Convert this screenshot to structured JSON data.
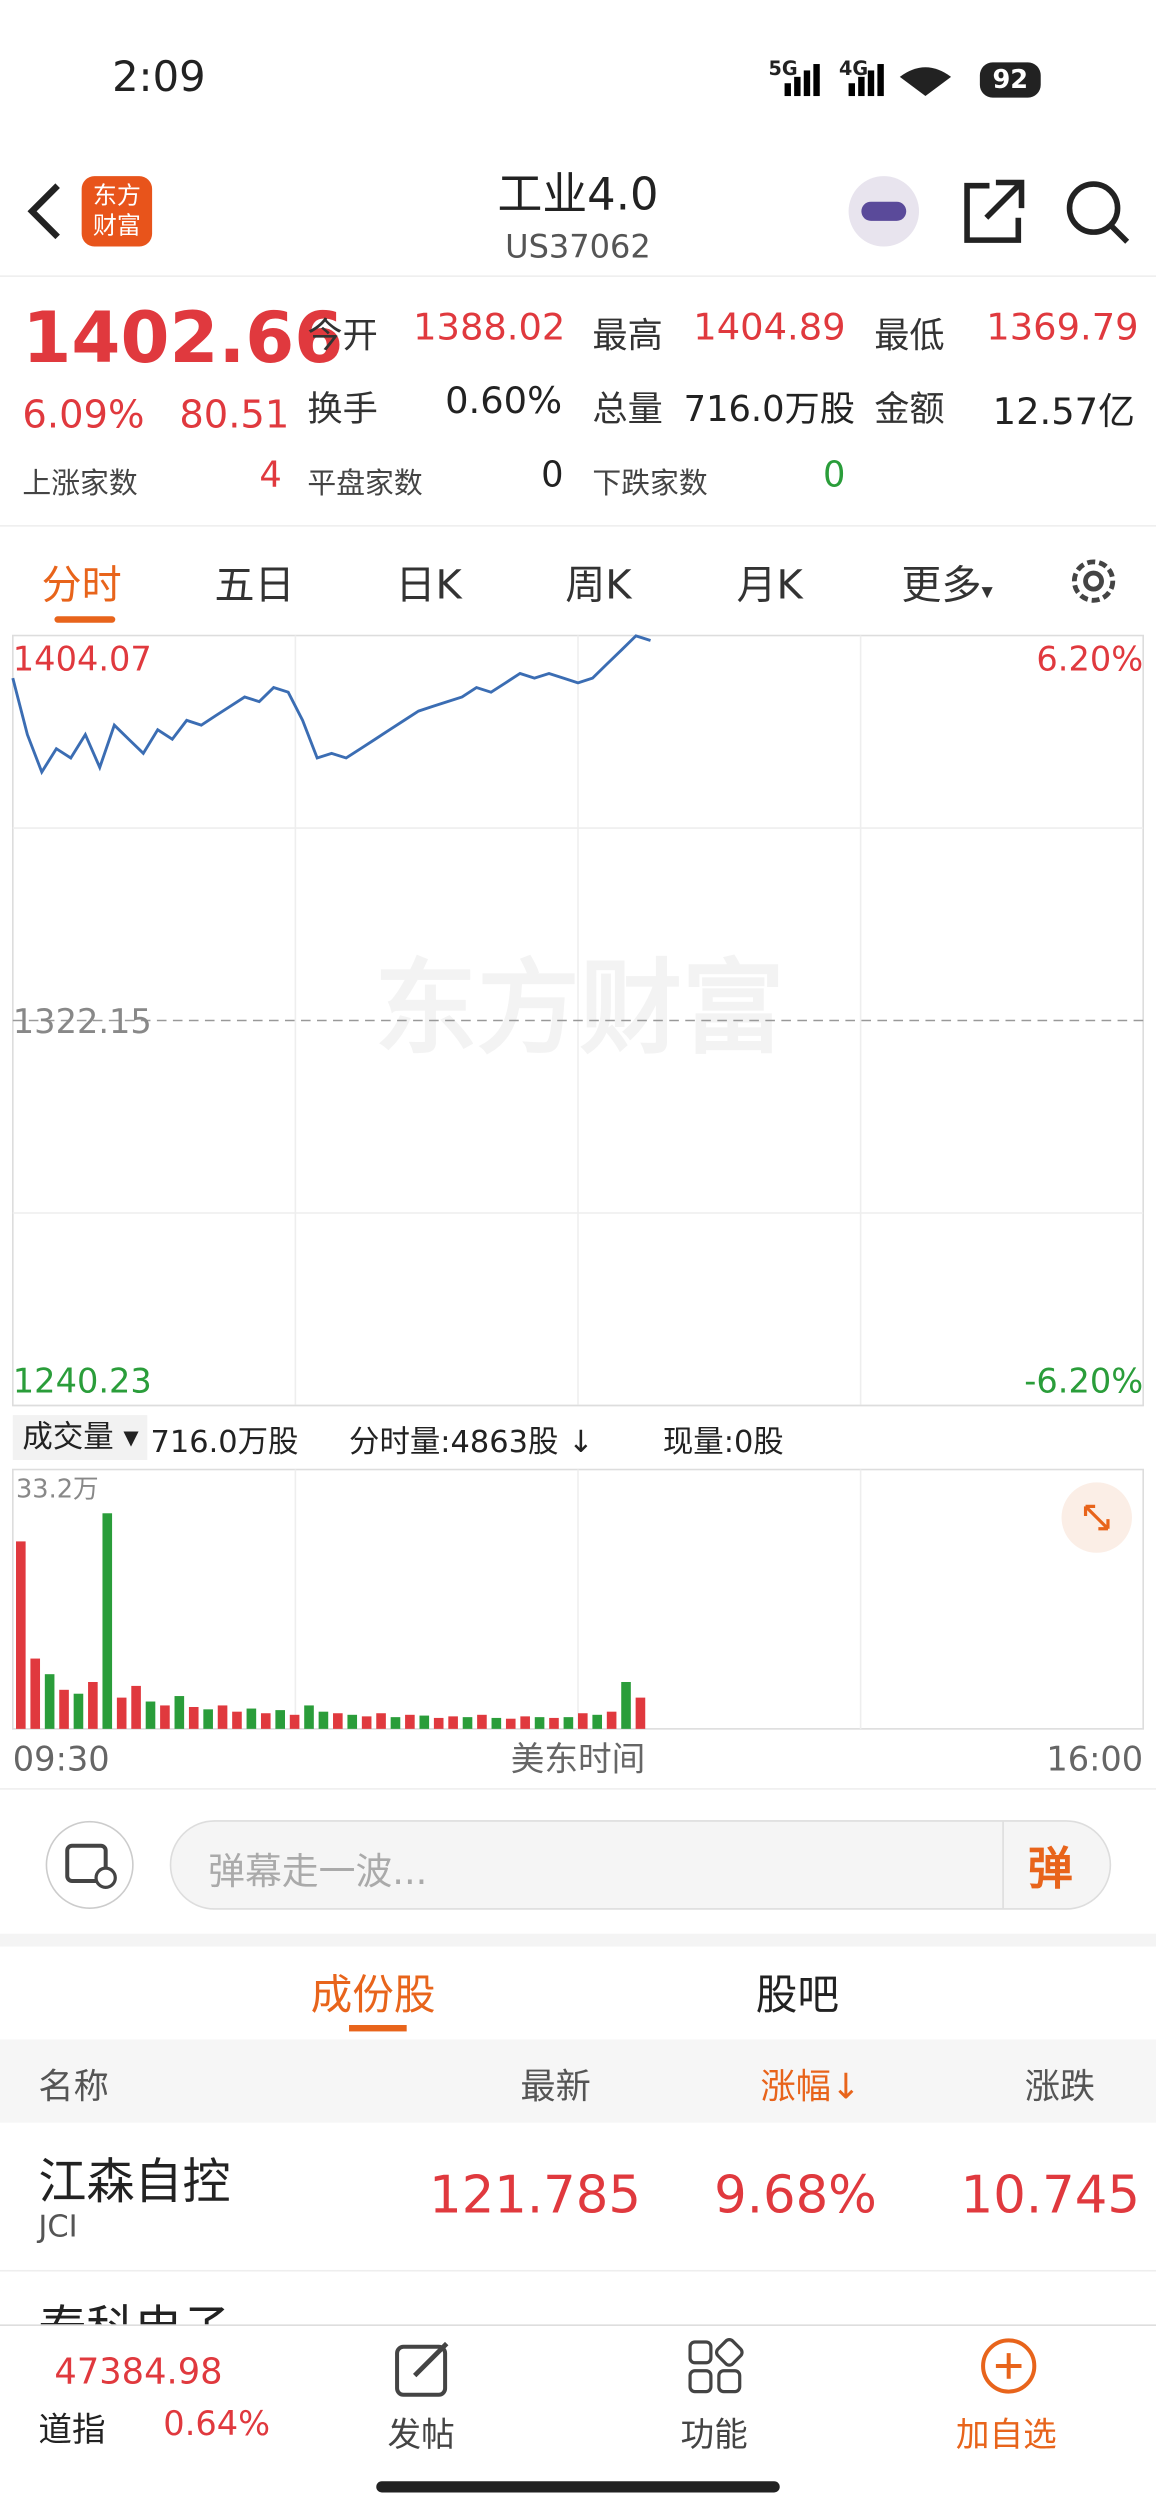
{
  "status": {
    "time": "2:09",
    "net1": "5G",
    "net2": "4G",
    "battery": "92"
  },
  "header": {
    "title": "工业4.0",
    "code": "US37062",
    "logo": "东方财富"
  },
  "quote": {
    "price": "1402.66",
    "pct": "6.09%",
    "chg": "80.51",
    "open_label": "今开",
    "open": "1388.02",
    "high_label": "最高",
    "high": "1404.89",
    "low_label": "最低",
    "low": "1369.79",
    "turnover_label": "换手",
    "turnover": "0.60%",
    "vol_label": "总量",
    "vol": "716.0万股",
    "amount_label": "金额",
    "amount": "12.57亿",
    "up_label": "上涨家数",
    "up": "4",
    "flat_label": "平盘家数",
    "flat": "0",
    "down_label": "下跌家数",
    "down": "0"
  },
  "tabs": [
    "分时",
    "五日",
    "日K",
    "周K",
    "月K",
    "更多"
  ],
  "chart_data": [
    {
      "type": "line",
      "color": "#3b6db3",
      "watermark": "东方财富",
      "ylim": [
        1240.23,
        1404.07
      ],
      "yticks": [
        1240.23,
        1322.15,
        1404.07
      ],
      "y2lim": [
        -6.2,
        6.2
      ],
      "y2ticks": [
        {
          "value": -6.2,
          "label": "-6.20%"
        },
        {
          "value": 6.2,
          "label": "6.20%"
        }
      ],
      "sessions": 390,
      "step": 5,
      "values": [
        1395,
        1383,
        1375,
        1380,
        1378,
        1383,
        1376,
        1385,
        1382,
        1379,
        1384,
        1382,
        1386,
        1385,
        1387,
        1389,
        1391,
        1390,
        1393,
        1392,
        1386,
        1378,
        1379,
        1378,
        1380,
        1382,
        1384,
        1386,
        1388,
        1389,
        1390,
        1391,
        1393,
        1392,
        1394,
        1396,
        1395,
        1396,
        1395,
        1394,
        1395,
        1398,
        1401,
        1404,
        1403
      ]
    },
    {
      "type": "bar",
      "ylim": [
        0,
        332000
      ],
      "yticks": [
        {
          "value": 332000,
          "label": "33.2万"
        }
      ],
      "up_color": "#e0393e",
      "down_color": "#2a9d3a",
      "values": [
        240000,
        90000,
        70000,
        50000,
        45000,
        60000,
        276000,
        40000,
        55000,
        35000,
        30000,
        42000,
        28000,
        25000,
        30000,
        22000,
        26000,
        20000,
        24000,
        18000,
        30000,
        22000,
        20000,
        18000,
        16000,
        20000,
        15000,
        18000,
        17000,
        14000,
        16000,
        15000,
        18000,
        14000,
        13000,
        16000,
        15000,
        14000,
        15000,
        20000,
        18000,
        22000,
        60000,
        40000
      ],
      "direction": [
        1,
        1,
        0,
        1,
        0,
        1,
        0,
        1,
        1,
        0,
        1,
        0,
        1,
        0,
        1,
        1,
        0,
        1,
        0,
        1,
        0,
        0,
        1,
        0,
        1,
        1,
        0,
        1,
        0,
        1,
        1,
        0,
        1,
        0,
        1,
        1,
        0,
        1,
        0,
        1,
        0,
        1,
        0,
        1
      ],
      "x_labels": [
        "09:30",
        "美东时间",
        "16:00"
      ]
    }
  ],
  "volume_info": {
    "label": "成交量",
    "total": "716.0万股",
    "minute": "分时量:4863股",
    "now": "现量:0股"
  },
  "danmu": {
    "placeholder": "弹幕走一波...",
    "button": "弹"
  },
  "section_tabs": [
    "成份股",
    "股吧"
  ],
  "table": {
    "headers": [
      "名称",
      "最新",
      "涨幅",
      "涨跌"
    ],
    "rows": [
      {
        "name": "江森自控",
        "code": "JCI",
        "last": "121.785",
        "pct": "9.68%",
        "chg": "10.745"
      },
      {
        "name": "泰科电子"
      }
    ]
  },
  "bottom": {
    "index_value": "47384.98",
    "index_name": "道指",
    "index_pct": "0.64%",
    "nav": [
      "发帖",
      "功能",
      "加自选"
    ]
  }
}
